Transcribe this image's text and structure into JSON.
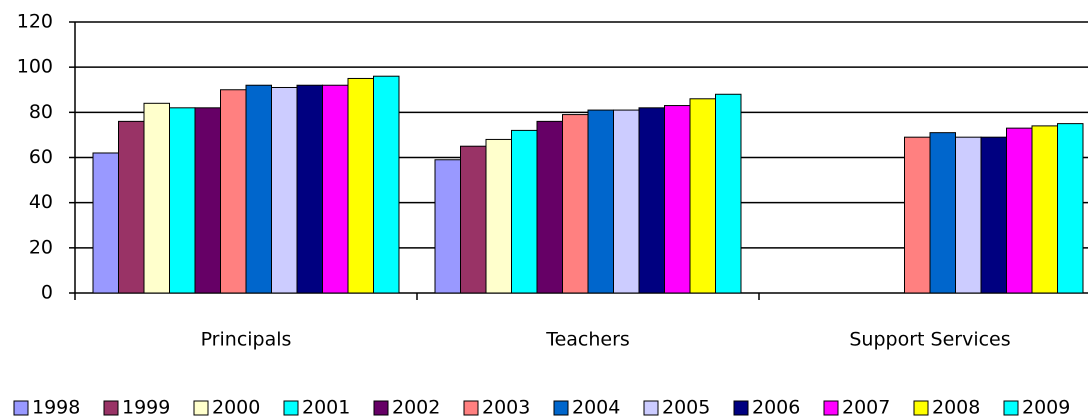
{
  "chart_data": {
    "type": "bar",
    "categories": [
      "Principals",
      "Teachers",
      "Support Services"
    ],
    "series": [
      {
        "name": "1998",
        "color": "#9999ff",
        "values": [
          62,
          59,
          null
        ]
      },
      {
        "name": "1999",
        "color": "#993366",
        "values": [
          76,
          65,
          null
        ]
      },
      {
        "name": "2000",
        "color": "#ffffcc",
        "values": [
          84,
          68,
          null
        ]
      },
      {
        "name": "2001",
        "color": "#00ffff",
        "values": [
          82,
          72,
          null
        ]
      },
      {
        "name": "2002",
        "color": "#660066",
        "values": [
          82,
          76,
          null
        ]
      },
      {
        "name": "2003",
        "color": "#ff8080",
        "values": [
          90,
          79,
          69
        ]
      },
      {
        "name": "2004",
        "color": "#0066cc",
        "values": [
          92,
          81,
          71
        ]
      },
      {
        "name": "2005",
        "color": "#ccccff",
        "values": [
          91,
          81,
          69
        ]
      },
      {
        "name": "2006",
        "color": "#000080",
        "values": [
          92,
          82,
          69
        ]
      },
      {
        "name": "2007",
        "color": "#ff00ff",
        "values": [
          92,
          83,
          73
        ]
      },
      {
        "name": "2008",
        "color": "#ffff00",
        "values": [
          95,
          86,
          74
        ]
      },
      {
        "name": "2009",
        "color": "#00ffff",
        "values": [
          96,
          88,
          75
        ]
      }
    ],
    "ylim": [
      0,
      120
    ],
    "yticks": [
      0,
      20,
      40,
      60,
      80,
      100,
      120
    ],
    "grid": true,
    "legend": "bottom"
  }
}
